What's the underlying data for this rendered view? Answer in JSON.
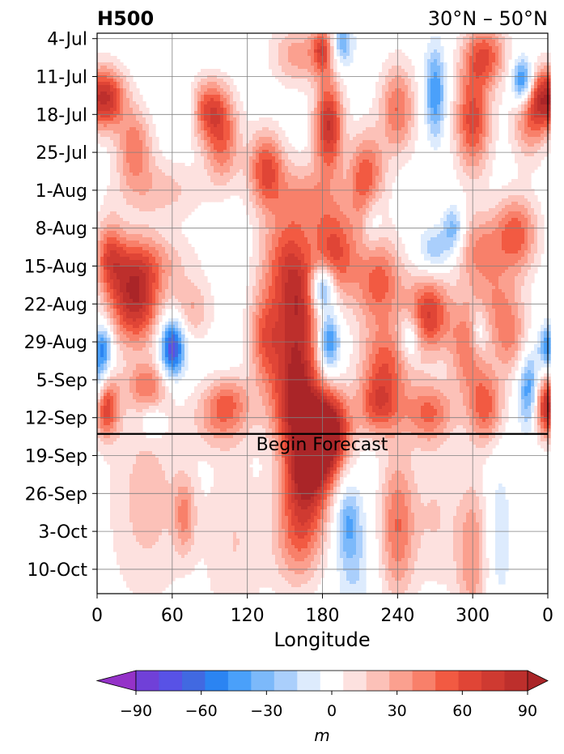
{
  "chart_data": {
    "type": "heatmap",
    "title_left": "H500",
    "title_right": "30°N – 50°N",
    "xlabel": "Longitude",
    "ylabel": "",
    "x_ticks": [
      "0",
      "60",
      "120",
      "180",
      "240",
      "300",
      "0"
    ],
    "x_tick_values": [
      0,
      60,
      120,
      180,
      240,
      300,
      360
    ],
    "x_range": [
      0,
      360
    ],
    "y_ticks": [
      "4-Jul",
      "11-Jul",
      "18-Jul",
      "25-Jul",
      "1-Aug",
      "8-Aug",
      "15-Aug",
      "22-Aug",
      "29-Aug",
      "5-Sep",
      "12-Sep",
      "19-Sep",
      "26-Sep",
      "3-Oct",
      "10-Oct"
    ],
    "y_tick_days": [
      0,
      7,
      14,
      21,
      28,
      35,
      42,
      49,
      56,
      63,
      70,
      77,
      84,
      91,
      98
    ],
    "y_range_days": [
      -1,
      102.5
    ],
    "forecast_start_day": 73,
    "forecast_label": "Begin Forecast",
    "grid": true,
    "colorbar": {
      "label": "m",
      "ticks": [
        "−90",
        "−60",
        "−30",
        "0",
        "30",
        "60",
        "90"
      ],
      "tick_values": [
        -90,
        -60,
        -30,
        0,
        30,
        60,
        90
      ],
      "levels": [
        -105,
        -90,
        -80,
        -70,
        -60,
        -50,
        -40,
        -30,
        -20,
        -10,
        10,
        20,
        30,
        40,
        50,
        60,
        70,
        80,
        90,
        105
      ],
      "colors": [
        "#9432c8",
        "#7040d8",
        "#5852e6",
        "#4169e1",
        "#2b84f2",
        "#4aa0fa",
        "#7cb9fa",
        "#aacffc",
        "#ddebfd",
        "#ffffff",
        "#fde1df",
        "#fcc1b8",
        "#fba08f",
        "#f8806a",
        "#f25a42",
        "#e04536",
        "#cf3a31",
        "#bd2f2c",
        "#aa2528"
      ],
      "extend": "both"
    },
    "anomaly_blobs": [
      {
        "lon": 5,
        "day": 11,
        "value": 85,
        "slon": 12,
        "sday": 4
      },
      {
        "lon": 30,
        "day": 20,
        "value": 45,
        "slon": 10,
        "sday": 5
      },
      {
        "lon": 70,
        "day": 13,
        "value": -20,
        "slon": 8,
        "sday": 3
      },
      {
        "lon": 50,
        "day": 28,
        "value": 25,
        "slon": 25,
        "sday": 4
      },
      {
        "lon": 90,
        "day": 13,
        "value": 60,
        "slon": 12,
        "sday": 4
      },
      {
        "lon": 100,
        "day": 20,
        "value": 45,
        "slon": 10,
        "sday": 5
      },
      {
        "lon": 160,
        "day": 3,
        "value": 35,
        "slon": 15,
        "sday": 4
      },
      {
        "lon": 165,
        "day": 30,
        "value": 40,
        "slon": 20,
        "sday": 5
      },
      {
        "lon": 135,
        "day": 24,
        "value": 60,
        "slon": 10,
        "sday": 5
      },
      {
        "lon": 180,
        "day": 2,
        "value": 55,
        "slon": 6,
        "sday": 3
      },
      {
        "lon": 185,
        "day": 16,
        "value": 80,
        "slon": 8,
        "sday": 6
      },
      {
        "lon": 215,
        "day": 26,
        "value": 60,
        "slon": 10,
        "sday": 6
      },
      {
        "lon": 240,
        "day": 13,
        "value": 50,
        "slon": 10,
        "sday": 6
      },
      {
        "lon": 300,
        "day": 15,
        "value": 65,
        "slon": 10,
        "sday": 7
      },
      {
        "lon": 310,
        "day": 3,
        "value": 55,
        "slon": 12,
        "sday": 4
      },
      {
        "lon": 345,
        "day": 16,
        "value": 35,
        "slon": 10,
        "sday": 5
      },
      {
        "lon": 196,
        "day": 1,
        "value": -40,
        "slon": 6,
        "sday": 3
      },
      {
        "lon": 270,
        "day": 10,
        "value": -50,
        "slon": 6,
        "sday": 6
      },
      {
        "lon": 340,
        "day": 8,
        "value": -70,
        "slon": 6,
        "sday": 3
      },
      {
        "lon": 285,
        "day": 35,
        "value": -40,
        "slon": 6,
        "sday": 3
      },
      {
        "lon": 220,
        "day": 33,
        "value": -25,
        "slon": 6,
        "sday": 4
      },
      {
        "lon": 40,
        "day": 41,
        "value": 30,
        "slon": 25,
        "sday": 4
      },
      {
        "lon": 30,
        "day": 48,
        "value": 85,
        "slon": 14,
        "sday": 6
      },
      {
        "lon": 10,
        "day": 40,
        "value": 45,
        "slon": 8,
        "sday": 5
      },
      {
        "lon": 75,
        "day": 50,
        "value": 30,
        "slon": 12,
        "sday": 4
      },
      {
        "lon": 60,
        "day": 57,
        "value": -85,
        "slon": 7,
        "sday": 4
      },
      {
        "lon": 40,
        "day": 64,
        "value": 40,
        "slon": 12,
        "sday": 3
      },
      {
        "lon": 5,
        "day": 57,
        "value": -50,
        "slon": 5,
        "sday": 3
      },
      {
        "lon": 5,
        "day": 68,
        "value": 85,
        "slon": 8,
        "sday": 4
      },
      {
        "lon": 150,
        "day": 40,
        "value": 40,
        "slon": 14,
        "sday": 5
      },
      {
        "lon": 135,
        "day": 55,
        "value": 55,
        "slon": 10,
        "sday": 7
      },
      {
        "lon": 160,
        "day": 48,
        "value": 70,
        "slon": 12,
        "sday": 6
      },
      {
        "lon": 190,
        "day": 40,
        "value": 60,
        "slon": 12,
        "sday": 6
      },
      {
        "lon": 180,
        "day": 46,
        "value": -70,
        "slon": 7,
        "sday": 3
      },
      {
        "lon": 185,
        "day": 56,
        "value": -60,
        "slon": 6,
        "sday": 4
      },
      {
        "lon": 160,
        "day": 60,
        "value": 70,
        "slon": 12,
        "sday": 6
      },
      {
        "lon": 225,
        "day": 45,
        "value": 55,
        "slon": 14,
        "sday": 6
      },
      {
        "lon": 265,
        "day": 51,
        "value": 70,
        "slon": 12,
        "sday": 5
      },
      {
        "lon": 230,
        "day": 60,
        "value": 50,
        "slon": 14,
        "sday": 5
      },
      {
        "lon": 250,
        "day": 55,
        "value": -35,
        "slon": 6,
        "sday": 3
      },
      {
        "lon": 270,
        "day": 39,
        "value": -30,
        "slon": 10,
        "sday": 3
      },
      {
        "lon": 305,
        "day": 39,
        "value": 40,
        "slon": 14,
        "sday": 5
      },
      {
        "lon": 335,
        "day": 36,
        "value": 55,
        "slon": 12,
        "sday": 5
      },
      {
        "lon": 320,
        "day": 49,
        "value": 30,
        "slon": 14,
        "sday": 5
      },
      {
        "lon": 330,
        "day": 56,
        "value": 35,
        "slon": 10,
        "sday": 5
      },
      {
        "lon": 295,
        "day": 57,
        "value": 45,
        "slon": 10,
        "sday": 6
      },
      {
        "lon": 305,
        "day": 54,
        "value": -30,
        "slon": 5,
        "sday": 3
      },
      {
        "lon": 345,
        "day": 65,
        "value": -55,
        "slon": 6,
        "sday": 5
      },
      {
        "lon": 310,
        "day": 68,
        "value": 55,
        "slon": 10,
        "sday": 5
      },
      {
        "lon": 100,
        "day": 70,
        "value": 40,
        "slon": 16,
        "sday": 4
      },
      {
        "lon": 105,
        "day": 66,
        "value": 25,
        "slon": 12,
        "sday": 3
      },
      {
        "lon": 160,
        "day": 69,
        "value": 70,
        "slon": 14,
        "sday": 5
      },
      {
        "lon": 185,
        "day": 72,
        "value": 95,
        "slon": 12,
        "sday": 5
      },
      {
        "lon": 225,
        "day": 68,
        "value": 55,
        "slon": 12,
        "sday": 4
      },
      {
        "lon": 265,
        "day": 69,
        "value": 50,
        "slon": 14,
        "sday": 4
      },
      {
        "lon": 45,
        "day": 71,
        "value": -25,
        "slon": 6,
        "sday": 2
      },
      {
        "lon": 360,
        "day": 11,
        "value": 85,
        "slon": 12,
        "sday": 4
      },
      {
        "lon": 360,
        "day": 57,
        "value": -50,
        "slon": 5,
        "sday": 3
      },
      {
        "lon": 360,
        "day": 68,
        "value": 85,
        "slon": 8,
        "sday": 4
      },
      {
        "lon": 0,
        "day": 65,
        "value": -55,
        "slon": 6,
        "sday": 5
      },
      {
        "lon": 170,
        "day": 78,
        "value": 80,
        "slon": 14,
        "sday": 5
      },
      {
        "lon": 165,
        "day": 86,
        "value": 55,
        "slon": 14,
        "sday": 6
      },
      {
        "lon": 160,
        "day": 95,
        "value": 30,
        "slon": 14,
        "sday": 6
      },
      {
        "lon": 240,
        "day": 90,
        "value": 50,
        "slon": 10,
        "sday": 10
      },
      {
        "lon": 300,
        "day": 95,
        "value": 40,
        "slon": 10,
        "sday": 10
      },
      {
        "lon": 40,
        "day": 85,
        "value": 25,
        "slon": 22,
        "sday": 14
      },
      {
        "lon": 70,
        "day": 88,
        "value": 35,
        "slon": 6,
        "sday": 5
      },
      {
        "lon": 110,
        "day": 93,
        "value": 20,
        "slon": 18,
        "sday": 12
      },
      {
        "lon": 200,
        "day": 89,
        "value": -35,
        "slon": 7,
        "sday": 5
      },
      {
        "lon": 205,
        "day": 98,
        "value": -20,
        "slon": 10,
        "sday": 8
      },
      {
        "lon": 320,
        "day": 92,
        "value": -20,
        "slon": 8,
        "sday": 10
      },
      {
        "lon": 270,
        "day": 88,
        "value": 20,
        "slon": 12,
        "sday": 10
      }
    ]
  }
}
